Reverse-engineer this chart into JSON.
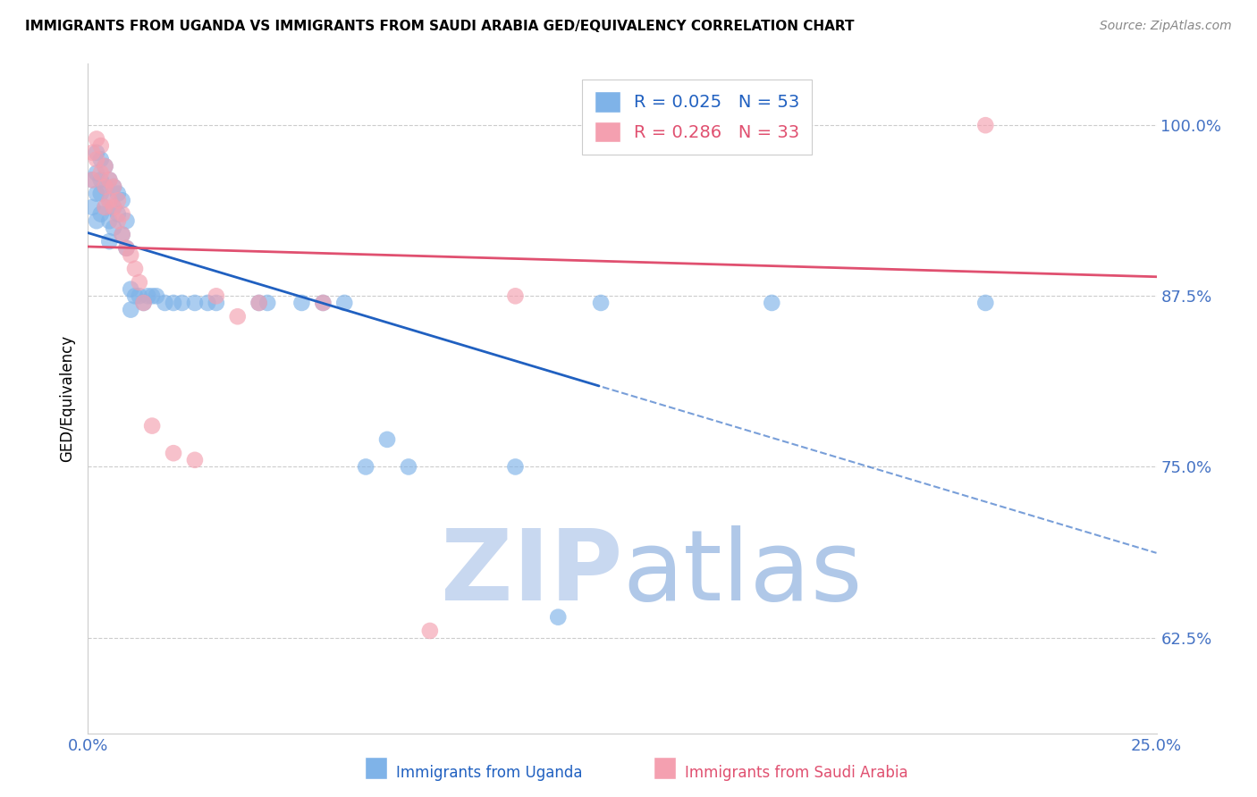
{
  "title": "IMMIGRANTS FROM UGANDA VS IMMIGRANTS FROM SAUDI ARABIA GED/EQUIVALENCY CORRELATION CHART",
  "source": "Source: ZipAtlas.com",
  "ylabel": "GED/Equivalency",
  "xlim": [
    0.0,
    0.25
  ],
  "ylim": [
    0.555,
    1.045
  ],
  "xticks": [
    0.0,
    0.05,
    0.1,
    0.15,
    0.2,
    0.25
  ],
  "xtick_labels": [
    "0.0%",
    "",
    "",
    "",
    "",
    "25.0%"
  ],
  "ytick_labels": [
    "62.5%",
    "75.0%",
    "87.5%",
    "100.0%"
  ],
  "yticks": [
    0.625,
    0.75,
    0.875,
    1.0
  ],
  "uganda_R": 0.025,
  "uganda_N": 53,
  "saudi_R": 0.286,
  "saudi_N": 33,
  "uganda_color": "#7FB3E8",
  "saudi_color": "#F4A0B0",
  "uganda_line_color": "#2060C0",
  "saudi_line_color": "#E05070",
  "axis_color": "#4472C4",
  "watermark_zip_color": "#C8D8F0",
  "watermark_atlas_color": "#B0C8E8",
  "uganda_x": [
    0.001,
    0.001,
    0.002,
    0.002,
    0.002,
    0.002,
    0.003,
    0.003,
    0.003,
    0.003,
    0.004,
    0.004,
    0.004,
    0.005,
    0.005,
    0.005,
    0.005,
    0.006,
    0.006,
    0.006,
    0.007,
    0.007,
    0.008,
    0.008,
    0.009,
    0.009,
    0.01,
    0.01,
    0.011,
    0.012,
    0.013,
    0.014,
    0.015,
    0.016,
    0.018,
    0.02,
    0.022,
    0.025,
    0.028,
    0.03,
    0.04,
    0.042,
    0.05,
    0.055,
    0.06,
    0.065,
    0.07,
    0.075,
    0.1,
    0.11,
    0.12,
    0.16,
    0.21
  ],
  "uganda_y": [
    0.96,
    0.94,
    0.98,
    0.965,
    0.95,
    0.93,
    0.975,
    0.96,
    0.95,
    0.935,
    0.97,
    0.955,
    0.94,
    0.96,
    0.945,
    0.93,
    0.915,
    0.955,
    0.94,
    0.925,
    0.95,
    0.935,
    0.92,
    0.945,
    0.93,
    0.91,
    0.88,
    0.865,
    0.875,
    0.875,
    0.87,
    0.875,
    0.875,
    0.875,
    0.87,
    0.87,
    0.87,
    0.87,
    0.87,
    0.87,
    0.87,
    0.87,
    0.87,
    0.87,
    0.87,
    0.75,
    0.77,
    0.75,
    0.75,
    0.64,
    0.87,
    0.87,
    0.87
  ],
  "saudi_x": [
    0.001,
    0.001,
    0.002,
    0.002,
    0.003,
    0.003,
    0.004,
    0.004,
    0.004,
    0.005,
    0.005,
    0.006,
    0.006,
    0.007,
    0.007,
    0.008,
    0.008,
    0.009,
    0.01,
    0.011,
    0.012,
    0.013,
    0.015,
    0.02,
    0.025,
    0.03,
    0.035,
    0.04,
    0.055,
    0.08,
    0.1,
    0.15,
    0.21
  ],
  "saudi_y": [
    0.98,
    0.96,
    0.99,
    0.975,
    0.985,
    0.965,
    0.97,
    0.955,
    0.94,
    0.96,
    0.945,
    0.955,
    0.94,
    0.945,
    0.93,
    0.935,
    0.92,
    0.91,
    0.905,
    0.895,
    0.885,
    0.87,
    0.78,
    0.76,
    0.755,
    0.875,
    0.86,
    0.87,
    0.87,
    0.63,
    0.875,
    1.0,
    1.0
  ]
}
